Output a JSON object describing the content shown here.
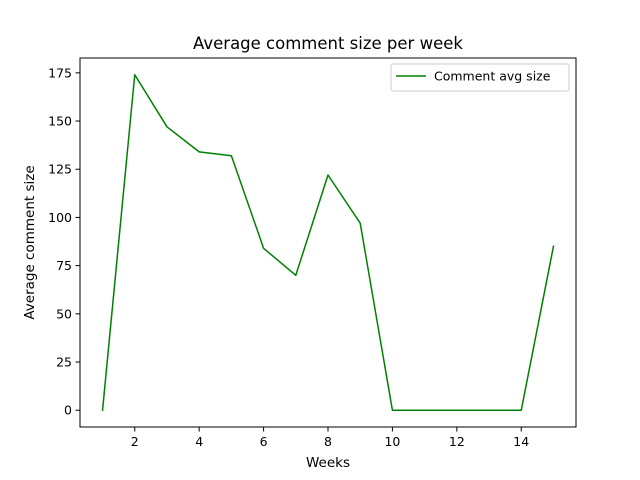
{
  "chart_data": {
    "type": "line",
    "title": "Average comment size per week",
    "xlabel": "Weeks",
    "ylabel": "Average comment size",
    "xlim": [
      0.3,
      15.7
    ],
    "ylim": [
      -8.7,
      182.7
    ],
    "xticks": [
      2,
      4,
      6,
      8,
      10,
      12,
      14
    ],
    "yticks": [
      0,
      25,
      50,
      75,
      100,
      125,
      150,
      175
    ],
    "grid": false,
    "legend_position": "top-right",
    "series": [
      {
        "name": "Comment avg size",
        "color": "#008000",
        "x": [
          1,
          2,
          3,
          4,
          5,
          6,
          7,
          8,
          9,
          10,
          11,
          12,
          13,
          14,
          15
        ],
        "y": [
          0,
          174,
          147,
          134,
          132,
          84,
          70,
          122,
          97,
          0,
          0,
          0,
          0,
          0,
          85
        ]
      }
    ]
  }
}
